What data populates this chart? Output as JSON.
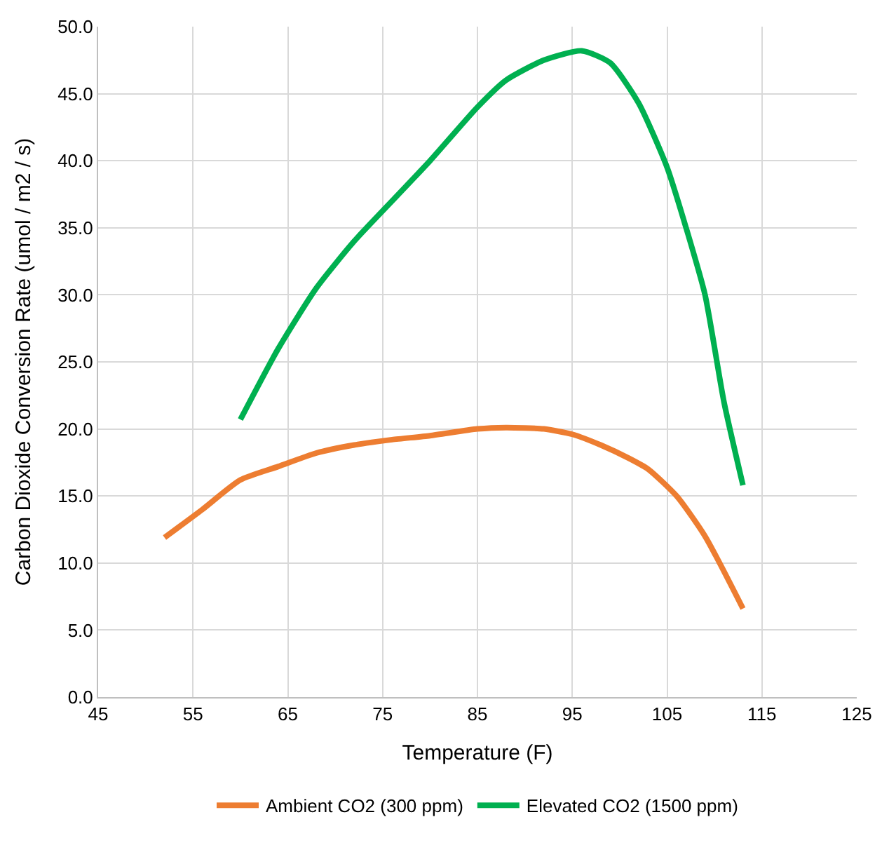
{
  "chart_data": {
    "type": "line",
    "xlabel": "Temperature (F)",
    "ylabel": "Carbon Dioxide Conversion Rate (umol / m2 / s)",
    "xlim": [
      45,
      125
    ],
    "xticks": [
      45,
      55,
      65,
      75,
      85,
      95,
      105,
      115,
      125
    ],
    "ylim": [
      0,
      50
    ],
    "yticks": [
      {
        "value": 0,
        "label": "0.0"
      },
      {
        "value": 5,
        "label": "5.0"
      },
      {
        "value": 10,
        "label": "10.0"
      },
      {
        "value": 15,
        "label": "15.0"
      },
      {
        "value": 20,
        "label": "20.0"
      },
      {
        "value": 25,
        "label": "25.0"
      },
      {
        "value": 30,
        "label": "30.0"
      },
      {
        "value": 35,
        "label": "35.0"
      },
      {
        "value": 40,
        "label": "40.0"
      },
      {
        "value": 45,
        "label": "45.0"
      },
      {
        "value": 50,
        "label": "50.0"
      }
    ],
    "grid": true,
    "legend": "bottom",
    "marker": "none",
    "line_style": "solid",
    "series": [
      {
        "name": "Ambient CO2 (300 ppm)",
        "color": "#ed7d31",
        "x": [
          52,
          56,
          60,
          64,
          68,
          72,
          76,
          80,
          85,
          88,
          92,
          95,
          98,
          101,
          103,
          106,
          109,
          113
        ],
        "values": [
          11.9,
          14,
          16.2,
          17.2,
          18.2,
          18.8,
          19.2,
          19.5,
          20,
          20.1,
          20,
          19.6,
          18.8,
          17.8,
          17,
          15,
          12,
          6.6
        ]
      },
      {
        "name": "Elevated CO2 (1500 ppm)",
        "color": "#00b050",
        "x": [
          60,
          64,
          68,
          72,
          76,
          80,
          85,
          88,
          92,
          96,
          99,
          102,
          105,
          107,
          109,
          111,
          113
        ],
        "values": [
          20.7,
          26,
          30.5,
          34,
          37,
          40,
          44,
          46,
          47.5,
          48.2,
          47.3,
          44.3,
          39.5,
          35,
          30,
          22,
          15.8
        ]
      }
    ]
  }
}
